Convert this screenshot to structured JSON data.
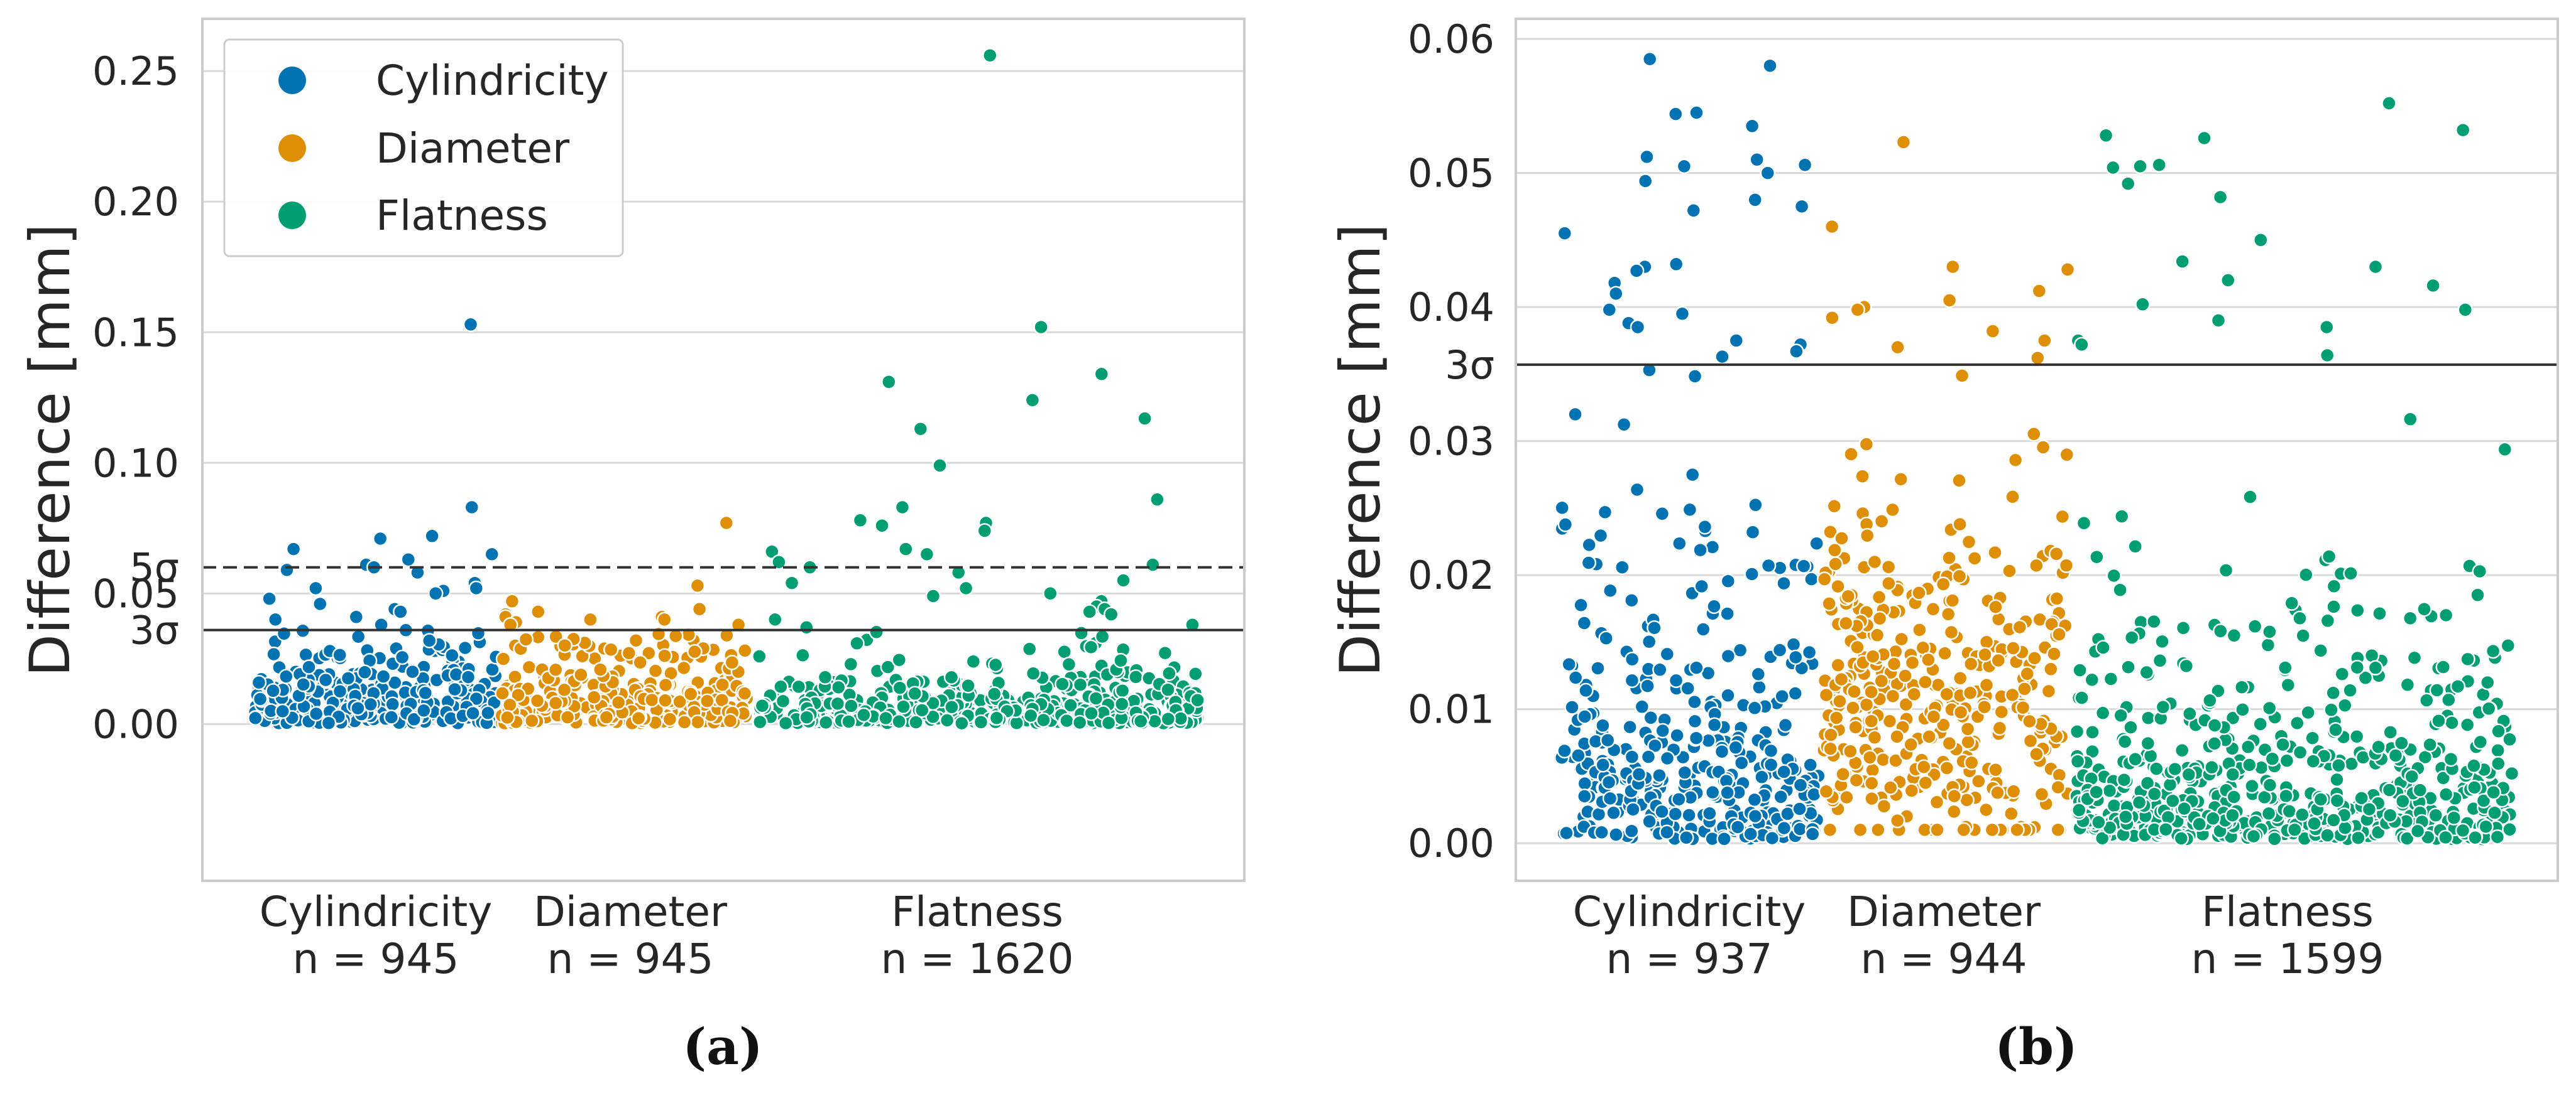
{
  "colors": {
    "cylindricity": "#0173b2",
    "diameter": "#de8f05",
    "flatness": "#029e73",
    "grid": "#d9d9d9",
    "axis": "#cccccc",
    "threshold": "#333333"
  },
  "legend": [
    "Cylindricity",
    "Diameter",
    "Flatness"
  ],
  "panels": [
    {
      "label": "(a)",
      "ylabel": "Difference [mm]",
      "ylim": [
        -0.06,
        0.27
      ],
      "yticks": [
        {
          "v": 0.0,
          "t": "0.00"
        },
        {
          "v": 0.05,
          "t": "0.05"
        },
        {
          "v": 0.1,
          "t": "0.10"
        },
        {
          "v": 0.15,
          "t": "0.15"
        },
        {
          "v": 0.2,
          "t": "0.20"
        },
        {
          "v": 0.25,
          "t": "0.25"
        }
      ],
      "sigma_lines": [
        {
          "v": 0.036,
          "t": "3σ",
          "style": "solid"
        },
        {
          "v": 0.06,
          "t": "5σ",
          "style": "dashed"
        }
      ],
      "categories": [
        {
          "name": "Cylindricity",
          "n_label": "n = 945"
        },
        {
          "name": "Diameter",
          "n_label": "n = 945"
        },
        {
          "name": "Flatness",
          "n_label": "n = 1620"
        }
      ]
    },
    {
      "label": "(b)",
      "ylabel": "Difference [mm]",
      "ylim": [
        -0.0028,
        0.0615
      ],
      "yticks": [
        {
          "v": 0.0,
          "t": "0.00"
        },
        {
          "v": 0.01,
          "t": "0.01"
        },
        {
          "v": 0.02,
          "t": "0.02"
        },
        {
          "v": 0.03,
          "t": "0.03"
        },
        {
          "v": 0.04,
          "t": "0.04"
        },
        {
          "v": 0.05,
          "t": "0.05"
        },
        {
          "v": 0.06,
          "t": "0.06"
        }
      ],
      "sigma_lines": [
        {
          "v": 0.0357,
          "t": "3σ",
          "style": "solid"
        }
      ],
      "categories": [
        {
          "name": "Cylindricity",
          "n_label": "n = 937"
        },
        {
          "name": "Diameter",
          "n_label": "n = 944"
        },
        {
          "name": "Flatness",
          "n_label": "n = 1599"
        }
      ]
    }
  ],
  "chart_data": [
    {
      "type": "scatter",
      "title": "(a)",
      "ylabel": "Difference [mm]",
      "ylim": [
        -0.06,
        0.27
      ],
      "grid": true,
      "legend_position": "top-left",
      "reference_lines": [
        {
          "label": "3σ",
          "y": 0.036
        },
        {
          "label": "5σ",
          "y": 0.06
        }
      ],
      "series": [
        {
          "name": "Cylindricity",
          "n": 945,
          "outliers": [
            0.153,
            0.083,
            0.072,
            0.071,
            0.067,
            0.065,
            0.063,
            0.061,
            0.06,
            0.059,
            0.058,
            0.054,
            0.052,
            0.052,
            0.051,
            0.05,
            0.048,
            0.046,
            0.044,
            0.043,
            0.041,
            0.04,
            0.038
          ]
        },
        {
          "name": "Diameter",
          "n": 945,
          "outliers": [
            0.077,
            0.053,
            0.047,
            0.044,
            0.043,
            0.042,
            0.041,
            0.041,
            0.04,
            0.04,
            0.039,
            0.038,
            0.038
          ]
        },
        {
          "name": "Flatness",
          "n": 1620,
          "outliers": [
            0.256,
            0.152,
            0.134,
            0.131,
            0.124,
            0.117,
            0.113,
            0.099,
            0.086,
            0.083,
            0.078,
            0.077,
            0.076,
            0.074,
            0.067,
            0.066,
            0.065,
            0.062,
            0.061,
            0.06,
            0.058,
            0.055,
            0.054,
            0.052,
            0.05,
            0.049,
            0.047,
            0.045,
            0.044,
            0.043,
            0.042,
            0.04,
            0.038,
            0.037
          ]
        }
      ]
    },
    {
      "type": "scatter",
      "title": "(b)",
      "ylabel": "Difference [mm]",
      "ylim": [
        -0.0028,
        0.0615
      ],
      "grid": true,
      "reference_lines": [
        {
          "label": "3σ",
          "y": 0.0357
        }
      ],
      "series": [
        {
          "name": "Cylindricity",
          "n": 937,
          "outliers": [
            0.0585,
            0.058,
            0.0545,
            0.0544,
            0.0535,
            0.0512,
            0.051,
            0.0506,
            0.0505,
            0.05,
            0.0494,
            0.048,
            0.0475,
            0.0472,
            0.0455,
            0.0432,
            0.043,
            0.0427,
            0.0418,
            0.041,
            0.0398,
            0.0395,
            0.0388,
            0.0385,
            0.0375,
            0.0372,
            0.0367,
            0.0363
          ]
        },
        {
          "name": "Diameter",
          "n": 944,
          "outliers": [
            0.0523,
            0.046,
            0.043,
            0.0428,
            0.0412,
            0.0405,
            0.04,
            0.0398,
            0.0392,
            0.0382,
            0.0375,
            0.037,
            0.0362
          ]
        },
        {
          "name": "Flatness",
          "n": 1599,
          "outliers": [
            0.0552,
            0.0532,
            0.0528,
            0.0526,
            0.0506,
            0.0505,
            0.0504,
            0.0492,
            0.0482,
            0.045,
            0.0434,
            0.043,
            0.042,
            0.0416,
            0.0402,
            0.0398,
            0.039,
            0.0385,
            0.0375,
            0.0372,
            0.0364
          ]
        }
      ]
    }
  ]
}
